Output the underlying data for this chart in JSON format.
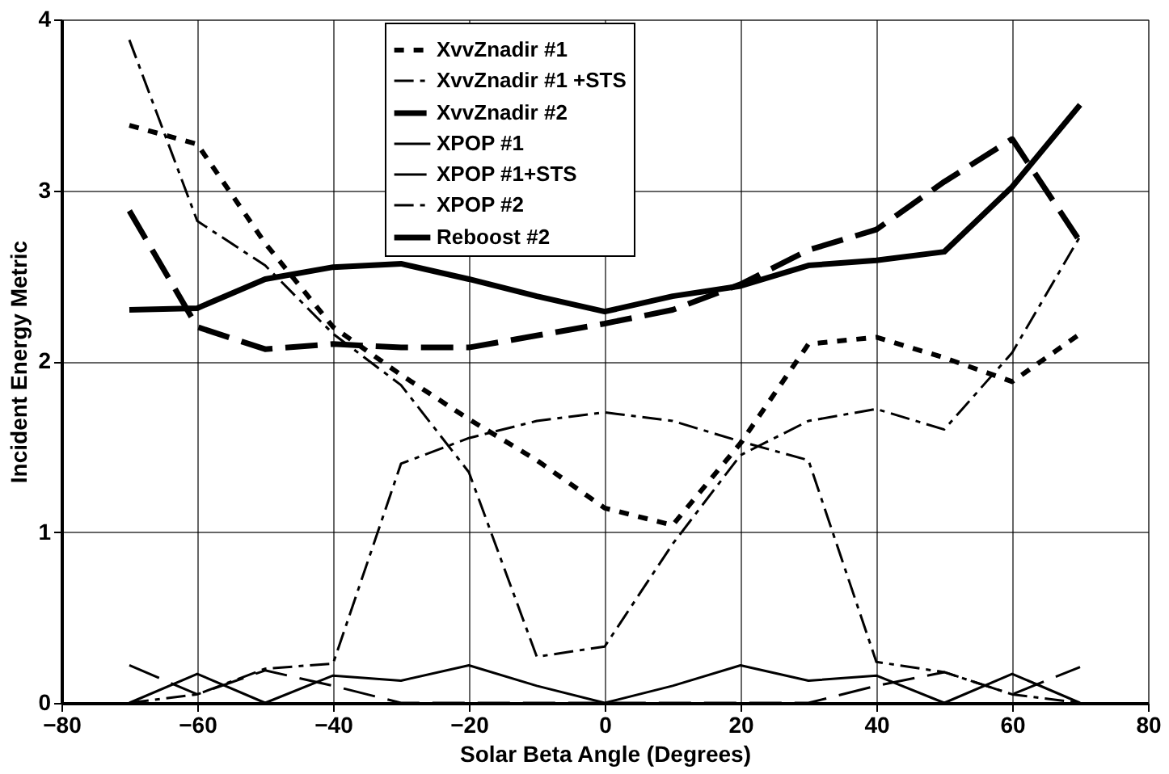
{
  "chart_data": {
    "type": "line",
    "xlabel": "Solar Beta Angle (Degrees)",
    "ylabel": "Incident Energy Metric",
    "x": [
      -70,
      -60,
      -50,
      -40,
      -30,
      -20,
      -10,
      0,
      10,
      20,
      30,
      40,
      50,
      60,
      70
    ],
    "series": [
      {
        "name": "XvvZnadir #1",
        "color": "#000000",
        "line_style": "dotted",
        "values": [
          3.38,
          3.27,
          2.69,
          2.2,
          1.92,
          1.66,
          1.42,
          1.14,
          1.04,
          1.52,
          2.1,
          2.14,
          2.02,
          1.88,
          2.16
        ]
      },
      {
        "name": "XvvZnadir #1 +STS",
        "color": "#000000",
        "line_style": "dashed",
        "values": [
          3.88,
          2.82,
          2.56,
          2.16,
          1.86,
          1.35,
          0.27,
          0.33,
          0.93,
          1.45,
          1.65,
          1.72,
          1.6,
          2.05,
          2.73
        ]
      },
      {
        "name": "XvvZnadir #2",
        "color": "#000000",
        "line_style": "dashed",
        "values": [
          2.88,
          2.2,
          2.07,
          2.1,
          2.08,
          2.08,
          2.15,
          2.22,
          2.3,
          2.45,
          2.65,
          2.77,
          3.05,
          3.3,
          2.7
        ]
      },
      {
        "name": "XPOP #1",
        "color": "#000000",
        "line_style": "solid",
        "values": [
          0,
          0.17,
          0,
          0.16,
          0.13,
          0.22,
          0.1,
          0,
          0.1,
          0.22,
          0.13,
          0.16,
          0,
          0.17,
          0
        ]
      },
      {
        "name": "XPOP #1+STS",
        "color": "#000000",
        "line_style": "dashed",
        "values": [
          0.22,
          0.05,
          0.19,
          0.1,
          0,
          0,
          0,
          0,
          0,
          0,
          0,
          0.1,
          0.18,
          0.05,
          0.21
        ]
      },
      {
        "name": "XPOP #2",
        "color": "#000000",
        "line_style": "dashed",
        "values": [
          0,
          0.05,
          0.2,
          0.23,
          1.4,
          1.55,
          1.65,
          1.7,
          1.65,
          1.53,
          1.42,
          0.24,
          0.18,
          0.05,
          0
        ]
      },
      {
        "name": "Reboost #2",
        "color": "#000000",
        "line_style": "solid",
        "values": [
          2.3,
          2.31,
          2.48,
          2.55,
          2.57,
          2.48,
          2.38,
          2.29,
          2.38,
          2.44,
          2.56,
          2.59,
          2.64,
          3.02,
          3.5
        ]
      }
    ],
    "xlim": [
      -80,
      80
    ],
    "xticks": [
      -80,
      -60,
      -40,
      -20,
      0,
      20,
      40,
      60,
      80
    ],
    "ylim": [
      0,
      4
    ],
    "yticks": [
      0,
      1,
      2,
      3,
      4
    ],
    "grid": true,
    "legend": "top",
    "marker": "none"
  }
}
